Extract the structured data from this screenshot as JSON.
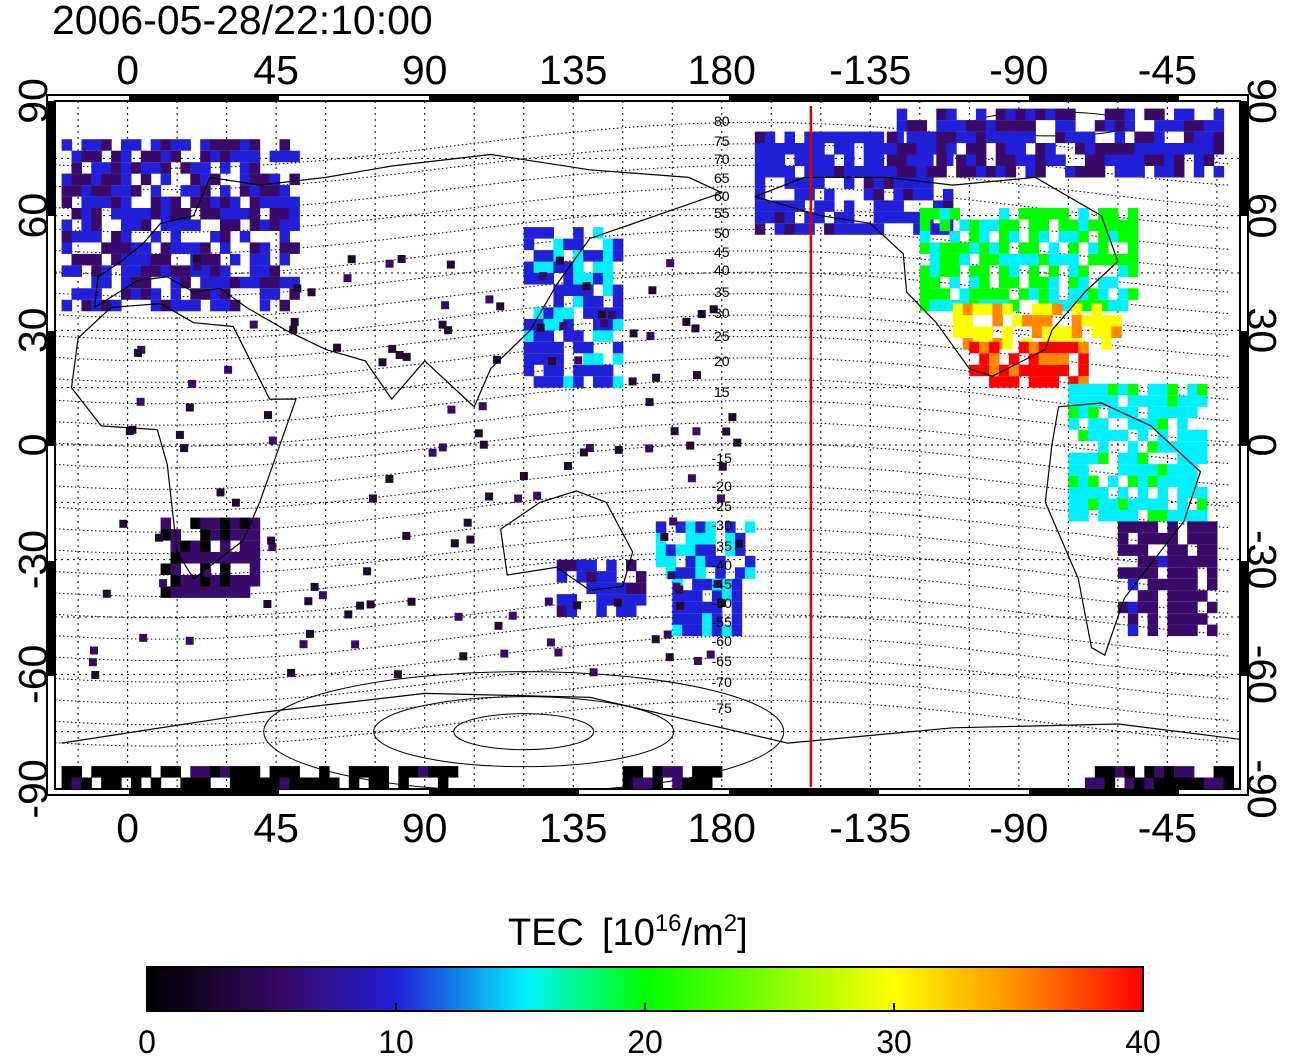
{
  "timestamp": "2006-05-28/22:10:00",
  "map": {
    "x_ticks": [
      "0",
      "45",
      "90",
      "135",
      "180",
      "-135",
      "-90",
      "-45"
    ],
    "x_tick_lons": [
      0,
      45,
      90,
      135,
      180,
      225,
      270,
      315
    ],
    "y_ticks": [
      "90",
      "60",
      "30",
      "0",
      "-30",
      "-60",
      "-90"
    ],
    "y_tick_lats": [
      90,
      60,
      30,
      0,
      -30,
      -60,
      -90
    ],
    "lon_range": [
      -22,
      337
    ],
    "lat_range": [
      -90,
      90
    ],
    "meridian_lon": 207,
    "meridian_color": "#dd0000",
    "grid": "dotted 15-degree",
    "contour_labels_north": [
      "80",
      "75",
      "70",
      "65",
      "60",
      "55",
      "50",
      "45",
      "40",
      "35",
      "30",
      "25",
      "20",
      "15"
    ],
    "contour_labels_south": [
      "-15",
      "-20",
      "-25",
      "-30",
      "-35",
      "-40",
      "-45",
      "-50",
      "-55",
      "-60",
      "-65",
      "-70",
      "-75"
    ]
  },
  "colorbar": {
    "title": "TEC",
    "unit_base": "[10",
    "unit_exp": "16",
    "unit_mid": "/m",
    "unit_exp2": "2",
    "unit_close": "]",
    "ticks": [
      "0",
      "10",
      "20",
      "30",
      "40"
    ],
    "tick_values": [
      0,
      10,
      20,
      30,
      40
    ],
    "range": [
      0,
      40
    ],
    "colormap": [
      "#000000",
      "#3a0a6a",
      "#2020d8",
      "#00f0ff",
      "#00ff00",
      "#ffff00",
      "#ff8800",
      "#ff0000"
    ]
  }
}
